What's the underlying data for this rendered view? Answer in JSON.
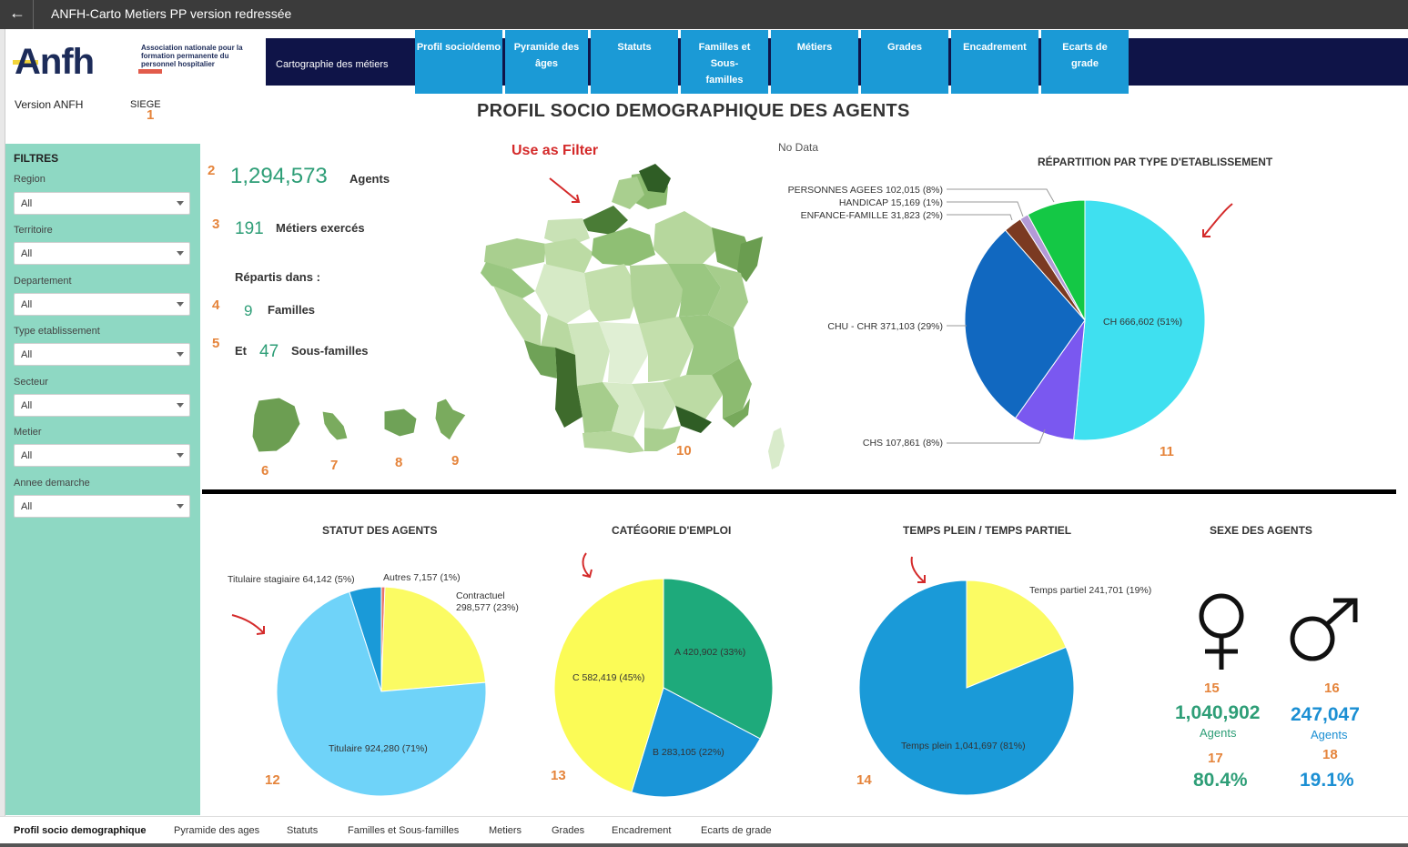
{
  "window": {
    "title": "ANFH-Carto Metiers PP version redressée"
  },
  "logo": {
    "word": "Anfh",
    "subtitle": "Association nationale pour la formation permanente du personnel hospitalier"
  },
  "nav": {
    "subtitle": "Cartographie des métiers",
    "tabs": [
      "Profil socio/demo",
      "Pyramide des âges",
      "Statuts",
      "Familles et Sous-familles",
      "Métiers",
      "Grades",
      "Encadrement",
      "Ecarts de grade"
    ]
  },
  "version": {
    "label": "Version ANFH",
    "site": "SIEGE"
  },
  "page_title": "PROFIL SOCIO DEMOGRAPHIQUE DES AGENTS",
  "filters": {
    "heading": "FILTRES",
    "items": [
      {
        "label": "Region",
        "value": "All"
      },
      {
        "label": "Territoire",
        "value": "All"
      },
      {
        "label": "Departement",
        "value": "All"
      },
      {
        "label": "Type etablissement",
        "value": "All"
      },
      {
        "label": "Secteur",
        "value": "All"
      },
      {
        "label": "Metier",
        "value": "All"
      },
      {
        "label": "Annee demarche",
        "value": "All"
      }
    ]
  },
  "kpis": {
    "agents_value": "1,294,573",
    "agents_label": "Agents",
    "metiers_value": "191",
    "metiers_label": "Métiers exercés",
    "repartis": "Répartis dans :",
    "familles_value": "9",
    "familles_label": "Familles",
    "et": "Et",
    "sousfam_value": "47",
    "sousfam_label": "Sous-familles"
  },
  "annotations": {
    "use_as_filter": "Use as Filter",
    "numbers": [
      "1",
      "2",
      "3",
      "4",
      "5",
      "6",
      "7",
      "8",
      "9",
      "10",
      "11",
      "12",
      "13",
      "14",
      "15",
      "16",
      "17",
      "18"
    ],
    "color": "#e5843b",
    "arrow_color": "#d42a2a"
  },
  "map": {
    "no_data": "No Data"
  },
  "charts": {
    "etablissement": {
      "title": "RÉPARTITION PAR TYPE D'ETABLISSEMENT"
    },
    "statut": {
      "title": "STATUT DES AGENTS"
    },
    "categorie": {
      "title": "CATÉGORIE D'EMPLOI"
    },
    "temps": {
      "title": "TEMPS PLEIN / TEMPS PARTIEL"
    },
    "sexe": {
      "title": "SEXE DES AGENTS"
    }
  },
  "chart_data": [
    {
      "type": "pie",
      "title": "RÉPARTITION PAR TYPE D'ETABLISSEMENT",
      "slices": [
        {
          "name": "CH",
          "value": 666602,
          "label": "CH 666,602 (51%)",
          "color": "#3fe0f0"
        },
        {
          "name": "CHS",
          "value": 107861,
          "label": "CHS 107,861 (8%)",
          "color": "#7a58f0"
        },
        {
          "name": "CHU - CHR",
          "value": 371103,
          "label": "CHU - CHR 371,103 (29%)",
          "color": "#1168c0"
        },
        {
          "name": "ENFANCE-FAMILLE",
          "value": 31823,
          "label": "ENFANCE-FAMILLE 31,823 (2%)",
          "color": "#7b3a22"
        },
        {
          "name": "HANDICAP",
          "value": 15169,
          "label": "HANDICAP 15,169 (1%)",
          "color": "#b39ad6"
        },
        {
          "name": "PERSONNES AGEES",
          "value": 102015,
          "label": "PERSONNES AGEES 102,015 (8%)",
          "color": "#14c845"
        }
      ]
    },
    {
      "type": "pie",
      "title": "STATUT DES AGENTS",
      "slices": [
        {
          "name": "Autres",
          "value": 7157,
          "label": "Autres 7,157 (1%)",
          "color": "#e8736a"
        },
        {
          "name": "Contractuel",
          "value": 298577,
          "label": "Contractuel 298,577 (23%)",
          "color": "#fbfb63"
        },
        {
          "name": "Titulaire",
          "value": 924280,
          "label": "Titulaire 924,280 (71%)",
          "color": "#6fd3f9"
        },
        {
          "name": "Titulaire stagiaire",
          "value": 64142,
          "label": "Titulaire stagiaire 64,142 (5%)",
          "color": "#1a9ad8"
        }
      ]
    },
    {
      "type": "pie",
      "title": "CATÉGORIE D'EMPLOI",
      "slices": [
        {
          "name": "A",
          "value": 420902,
          "label": "A 420,902 (33%)",
          "color": "#1eaa7b"
        },
        {
          "name": "B",
          "value": 283105,
          "label": "B 283,105 (22%)",
          "color": "#1a95d8"
        },
        {
          "name": "C",
          "value": 582419,
          "label": "C 582,419 (45%)",
          "color": "#fbfb56"
        }
      ]
    },
    {
      "type": "pie",
      "title": "TEMPS PLEIN / TEMPS PARTIEL",
      "slices": [
        {
          "name": "Temps partiel",
          "value": 241701,
          "label": "Temps partiel 241,701 (19%)",
          "color": "#fbfb63"
        },
        {
          "name": "Temps plein",
          "value": 1041697,
          "label": "Temps plein 1,041,697 (81%)",
          "color": "#1a9ad8"
        }
      ]
    }
  ],
  "sexe": {
    "female": {
      "value": "1,040,902",
      "label": "Agents",
      "pct": "80.4%",
      "color": "#2e9e77",
      "icon": "female-symbol-icon"
    },
    "male": {
      "value": "247,047",
      "label": "Agents",
      "pct": "19.1%",
      "color": "#1b8fd3",
      "icon": "male-symbol-icon"
    }
  },
  "bottom_tabs": [
    "Profil socio demographique",
    "Pyramide des ages",
    "Statuts",
    "Familles et Sous-familles",
    "Metiers",
    "Grades",
    "Encadrement",
    "Ecarts de grade"
  ]
}
